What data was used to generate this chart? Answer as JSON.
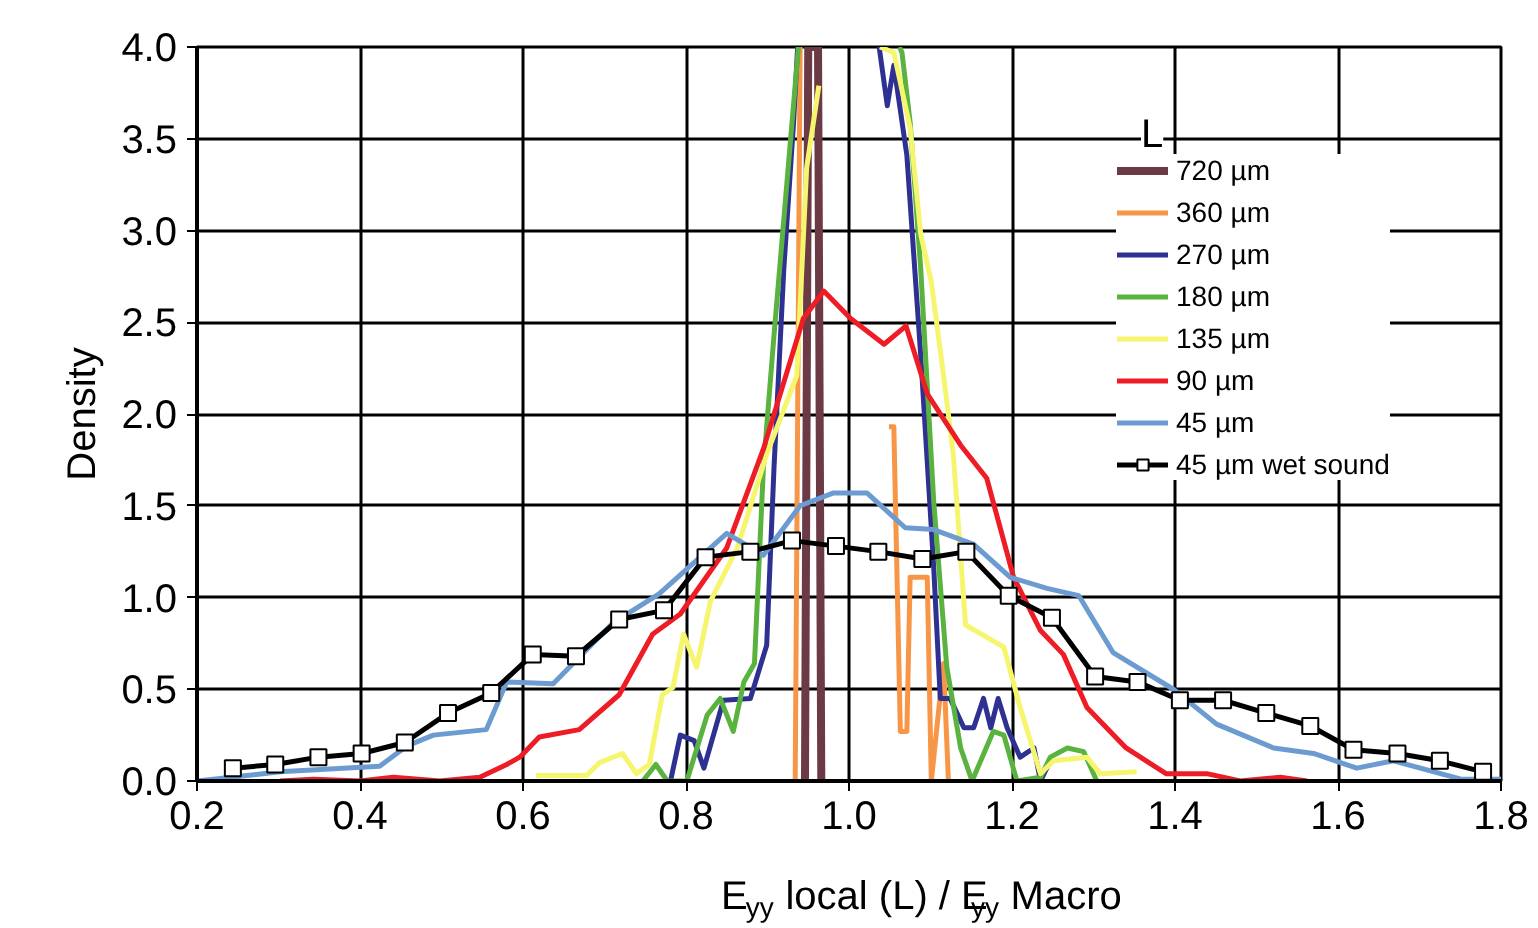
{
  "chart_data": {
    "type": "line",
    "xlabel": "E$_{yy}$ local (L) / E$_{yy}$ Macro",
    "ylabel": "Density",
    "annotations": [
      "L"
    ],
    "xlim": [
      0.2,
      1.8
    ],
    "ylim": [
      0,
      4.0
    ],
    "xticks": [
      {
        "value": 0.2,
        "label": "0.2"
      },
      {
        "value": 0.4,
        "label": "0.4"
      },
      {
        "value": 0.6,
        "label": "0.6"
      },
      {
        "value": 0.8,
        "label": "0.8"
      },
      {
        "value": 1.0,
        "label": "1.0"
      },
      {
        "value": 1.2,
        "label": "1.2"
      },
      {
        "value": 1.4,
        "label": "1.4"
      },
      {
        "value": 1.6,
        "label": "1.6"
      },
      {
        "value": 1.8,
        "label": "1.8"
      }
    ],
    "yticks": [
      {
        "value": 0,
        "label": "0.0"
      },
      {
        "value": 0.5,
        "label": "0.5"
      },
      {
        "value": 1.0,
        "label": "1.0"
      },
      {
        "value": 1.5,
        "label": "1.5"
      },
      {
        "value": 2.0,
        "label": "2.0"
      },
      {
        "value": 2.5,
        "label": "2.5"
      },
      {
        "value": 3.0,
        "label": "3.0"
      },
      {
        "value": 3.5,
        "label": "3.5"
      },
      {
        "value": 4.0,
        "label": "4.0"
      }
    ],
    "grid": true,
    "legend": "top right",
    "line_style": "solid",
    "series": [
      {
        "name": "720 µm",
        "color": "#6b3a44",
        "x": [
          0.946,
          0.95,
          0.962,
          0.966
        ],
        "values": [
          0,
          4.0,
          4.0,
          0
        ]
      },
      {
        "name": "360 µm",
        "color": "#f79646",
        "x": [
          0.934,
          0.94,
          0.945,
          1.049,
          1.055,
          1.063,
          1.071,
          1.075,
          1.096,
          1.101,
          1.116,
          1.122
        ],
        "values": [
          0,
          4.0,
          null,
          1.93,
          1.93,
          0.27,
          0.27,
          1.11,
          1.11,
          0,
          0.64,
          0
        ]
      },
      {
        "name": "270 µm",
        "color": "#2e3192",
        "x": [
          0.781,
          0.793,
          0.81,
          0.822,
          0.846,
          0.879,
          0.899,
          0.908,
          0.92,
          0.932,
          0.937,
          1.0,
          1.037,
          1.047,
          1.055,
          1.071,
          1.088,
          1.104,
          1.112,
          1.124,
          1.141,
          1.153,
          1.165,
          1.174,
          1.183,
          1.194,
          1.21,
          1.227,
          1.235,
          1.247
        ],
        "values": [
          0,
          0.25,
          0.22,
          0.07,
          0.44,
          0.45,
          0.74,
          1.71,
          2.79,
          3.59,
          4.0,
          null,
          4.0,
          3.68,
          3.9,
          3.41,
          2.32,
          1.16,
          0.45,
          0.45,
          0.29,
          0.29,
          0.45,
          0.29,
          0.45,
          0.29,
          0.13,
          0.18,
          0,
          0.11
        ]
      },
      {
        "name": "180 µm",
        "color": "#5bb33f",
        "x": [
          0.747,
          0.763,
          0.777,
          0.801,
          0.826,
          0.842,
          0.858,
          0.871,
          0.884,
          0.895,
          0.908,
          0.928,
          0.938,
          1.0,
          1.062,
          1.065,
          1.075,
          1.088,
          1.104,
          1.12,
          1.137,
          1.151,
          1.177,
          1.19,
          1.206,
          1.235,
          1.247,
          1.268,
          1.288,
          1.304
        ],
        "values": [
          0,
          0.09,
          0,
          0,
          0.36,
          0.45,
          0.27,
          0.54,
          0.64,
          1.71,
          2.43,
          3.48,
          4.0,
          null,
          4.0,
          3.97,
          3.59,
          2.79,
          1.52,
          0.62,
          0.18,
          0,
          0.27,
          0.25,
          0,
          0.02,
          0.13,
          0.18,
          0.16,
          0
        ]
      },
      {
        "name": "135 µm",
        "color": "#f5f56e",
        "x": [
          0.616,
          0.678,
          0.694,
          0.722,
          0.739,
          0.755,
          0.771,
          0.784,
          0.797,
          0.813,
          0.83,
          0.863,
          0.899,
          0.936,
          0.948,
          0.963,
          1.0,
          1.038,
          1.055,
          1.075,
          1.088,
          1.101,
          1.116,
          1.128,
          1.143,
          1.19,
          1.21,
          1.235,
          1.251,
          1.292,
          1.308,
          1.353
        ],
        "values": [
          0.03,
          0.03,
          0.1,
          0.15,
          0.04,
          0.09,
          0.47,
          0.51,
          0.8,
          0.62,
          0.98,
          1.27,
          1.78,
          2.21,
          3.34,
          3.79,
          null,
          4.0,
          3.97,
          3.56,
          2.98,
          2.72,
          2.21,
          1.78,
          0.85,
          0.73,
          0.4,
          0.04,
          0.11,
          0.13,
          0.04,
          0.05
        ]
      },
      {
        "name": "90 µm",
        "color": "#ee1c25",
        "x": [
          0.302,
          0.343,
          0.4,
          0.441,
          0.498,
          0.547,
          0.58,
          0.596,
          0.62,
          0.669,
          0.718,
          0.759,
          0.793,
          0.85,
          0.895,
          0.944,
          0.969,
          1.002,
          1.043,
          1.07,
          1.096,
          1.137,
          1.169,
          1.202,
          1.235,
          1.263,
          1.292,
          1.34,
          1.389,
          1.439,
          1.48,
          1.529,
          1.562
        ],
        "values": [
          0,
          0.01,
          0,
          0.02,
          0,
          0.02,
          0.09,
          0.13,
          0.24,
          0.28,
          0.47,
          0.8,
          0.91,
          1.27,
          1.81,
          2.52,
          2.67,
          2.52,
          2.38,
          2.48,
          2.11,
          1.83,
          1.65,
          1.11,
          0.82,
          0.69,
          0.4,
          0.18,
          0.04,
          0.04,
          0,
          0.02,
          0
        ]
      },
      {
        "name": "45 µm",
        "color": "#6b9bd1",
        "x": [
          0.2,
          0.302,
          0.424,
          0.457,
          0.49,
          0.555,
          0.58,
          0.637,
          0.71,
          0.767,
          0.85,
          0.895,
          0.94,
          0.981,
          1.022,
          1.069,
          1.104,
          1.153,
          1.198,
          1.243,
          1.282,
          1.324,
          1.398,
          1.451,
          1.521,
          1.57,
          1.623,
          1.668,
          1.751,
          1.8
        ],
        "values": [
          0,
          0.05,
          0.08,
          0.19,
          0.25,
          0.28,
          0.54,
          0.53,
          0.86,
          1.02,
          1.35,
          1.23,
          1.5,
          1.57,
          1.57,
          1.38,
          1.37,
          1.29,
          1.11,
          1.05,
          1.01,
          0.7,
          0.5,
          0.31,
          0.18,
          0.15,
          0.07,
          0.11,
          0.01,
          0.01
        ]
      },
      {
        "name": "45 µm wet sound",
        "color": "#000000",
        "marker": "square",
        "x": [
          0.244,
          0.296,
          0.349,
          0.402,
          0.455,
          0.508,
          0.561,
          0.612,
          0.665,
          0.718,
          0.773,
          0.824,
          0.879,
          0.93,
          0.984,
          1.036,
          1.09,
          1.144,
          1.196,
          1.249,
          1.302,
          1.354,
          1.406,
          1.459,
          1.512,
          1.566,
          1.619,
          1.673,
          1.725,
          1.778
        ],
        "values": [
          0.07,
          0.09,
          0.13,
          0.15,
          0.21,
          0.37,
          0.48,
          0.69,
          0.68,
          0.88,
          0.93,
          1.22,
          1.25,
          1.31,
          1.28,
          1.25,
          1.21,
          1.25,
          1.01,
          0.89,
          0.57,
          0.54,
          0.44,
          0.44,
          0.37,
          0.3,
          0.17,
          0.15,
          0.11,
          0.05
        ]
      }
    ]
  }
}
